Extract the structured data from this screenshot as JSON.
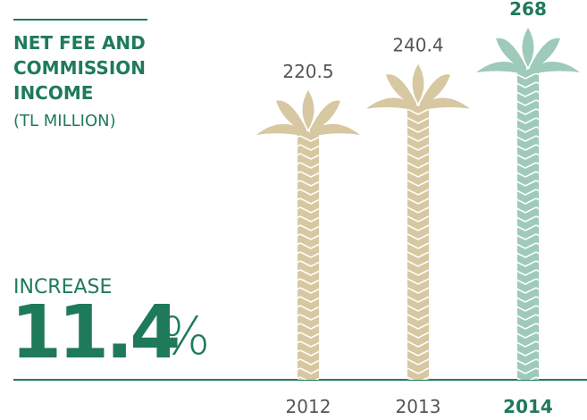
{
  "chart_data": {
    "type": "bar",
    "title": [
      "NET FEE AND",
      "COMMISSION",
      "INCOME"
    ],
    "subtitle": "(TL MILLION)",
    "highlight": {
      "label": "INCREASE",
      "value": 11.4,
      "unit": "%"
    },
    "categories": [
      "2012",
      "2013",
      "2014"
    ],
    "values": [
      220.5,
      240.4,
      268
    ],
    "colors": [
      "#d7c8a2",
      "#d7c8a2",
      "#9ecab9"
    ],
    "emphasis": [
      false,
      false,
      true
    ]
  }
}
